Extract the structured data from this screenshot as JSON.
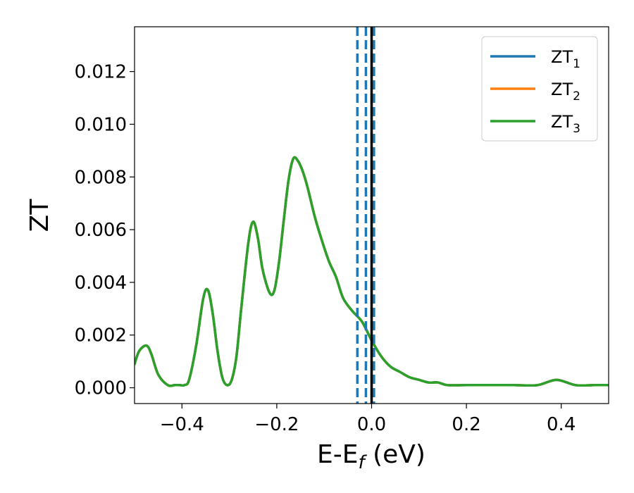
{
  "chart_data": {
    "type": "line",
    "xlabel_main": "E-E",
    "xlabel_sub": "f",
    "xlabel_unit": " (eV)",
    "ylabel": "ZT",
    "xlim": [
      -0.5,
      0.5
    ],
    "ylim": [
      -0.0006,
      0.0137
    ],
    "grid": false,
    "legend_position": "top-right",
    "x_ticks": [
      -0.4,
      -0.2,
      0.0,
      0.2,
      0.4
    ],
    "x_tick_labels": [
      "−0.4",
      "−0.2",
      "0.0",
      "0.2",
      "0.4"
    ],
    "y_ticks": [
      0.0,
      0.002,
      0.004,
      0.006,
      0.008,
      0.01,
      0.012
    ],
    "y_tick_labels": [
      "0.000",
      "0.002",
      "0.004",
      "0.006",
      "0.008",
      "0.010",
      "0.012"
    ],
    "vertical_lines": [
      {
        "x": -0.03,
        "style": "dashed",
        "color": "#1f77b4"
      },
      {
        "x": -0.012,
        "style": "dashed",
        "color": "#1f77b4"
      },
      {
        "x": 0.005,
        "style": "dashed",
        "color": "#1f77b4"
      },
      {
        "x": 0.0,
        "style": "solid",
        "color": "#000000"
      }
    ],
    "x": [
      -0.5,
      -0.49,
      -0.475,
      -0.465,
      -0.45,
      -0.43,
      -0.415,
      -0.405,
      -0.395,
      -0.385,
      -0.37,
      -0.355,
      -0.345,
      -0.335,
      -0.325,
      -0.315,
      -0.305,
      -0.295,
      -0.285,
      -0.275,
      -0.26,
      -0.25,
      -0.24,
      -0.23,
      -0.215,
      -0.205,
      -0.195,
      -0.185,
      -0.175,
      -0.165,
      -0.155,
      -0.145,
      -0.135,
      -0.12,
      -0.105,
      -0.09,
      -0.075,
      -0.06,
      -0.04,
      -0.02,
      0.0,
      0.02,
      0.04,
      0.06,
      0.08,
      0.1,
      0.12,
      0.14,
      0.16,
      0.2,
      0.25,
      0.3,
      0.35,
      0.39,
      0.43,
      0.47,
      0.5
    ],
    "series": [
      {
        "name": "ZT",
        "name_sub": "1",
        "color": "#1f77b4",
        "values": [
          0.0009,
          0.0014,
          0.0016,
          0.0013,
          0.0005,
          0.0001,
          0.0001,
          0.0001,
          0.0001,
          0.0003,
          0.0016,
          0.0034,
          0.0037,
          0.0028,
          0.0014,
          0.0004,
          0.0001,
          0.0003,
          0.0012,
          0.003,
          0.0055,
          0.0063,
          0.0057,
          0.0045,
          0.0036,
          0.0037,
          0.0048,
          0.0064,
          0.0079,
          0.0087,
          0.0086,
          0.0082,
          0.0076,
          0.0065,
          0.0056,
          0.0048,
          0.0042,
          0.0034,
          0.0029,
          0.0025,
          0.0018,
          0.0012,
          0.0008,
          0.0006,
          0.0004,
          0.0003,
          0.0002,
          0.0002,
          0.0001,
          0.0001,
          0.0001,
          0.0001,
          0.0001,
          0.0003,
          0.0001,
          0.0001,
          0.0001
        ]
      },
      {
        "name": "ZT",
        "name_sub": "2",
        "color": "#ff7f0e",
        "values": [
          0.0009,
          0.0014,
          0.0016,
          0.0013,
          0.0005,
          0.0001,
          0.0001,
          0.0001,
          0.0001,
          0.0003,
          0.0016,
          0.0034,
          0.0037,
          0.0028,
          0.0014,
          0.0004,
          0.0001,
          0.0003,
          0.0012,
          0.003,
          0.0055,
          0.0063,
          0.0057,
          0.0045,
          0.0036,
          0.0037,
          0.0048,
          0.0064,
          0.0079,
          0.0087,
          0.0086,
          0.0082,
          0.0076,
          0.0065,
          0.0056,
          0.0048,
          0.0042,
          0.0034,
          0.0029,
          0.0025,
          0.0018,
          0.0012,
          0.0008,
          0.0006,
          0.0004,
          0.0003,
          0.0002,
          0.0002,
          0.0001,
          0.0001,
          0.0001,
          0.0001,
          0.0001,
          0.0003,
          0.0001,
          0.0001,
          0.0001
        ]
      },
      {
        "name": "ZT",
        "name_sub": "3",
        "color": "#2ca02c",
        "values": [
          0.0009,
          0.0014,
          0.0016,
          0.0013,
          0.0005,
          0.0001,
          0.0001,
          0.0001,
          0.0001,
          0.0003,
          0.0016,
          0.0034,
          0.0037,
          0.0028,
          0.0014,
          0.0004,
          0.0001,
          0.0003,
          0.0012,
          0.003,
          0.0055,
          0.0063,
          0.0057,
          0.0045,
          0.0036,
          0.0037,
          0.0048,
          0.0064,
          0.0079,
          0.0087,
          0.0086,
          0.0082,
          0.0076,
          0.0065,
          0.0056,
          0.0048,
          0.0042,
          0.0034,
          0.0029,
          0.0025,
          0.0018,
          0.0012,
          0.0008,
          0.0006,
          0.0004,
          0.0003,
          0.0002,
          0.0002,
          0.0001,
          0.0001,
          0.0001,
          0.0001,
          0.0001,
          0.0003,
          0.0001,
          0.0001,
          0.0001
        ]
      }
    ]
  }
}
